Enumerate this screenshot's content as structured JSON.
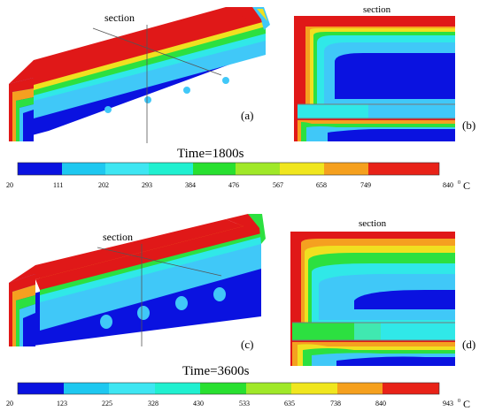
{
  "figure_top": {
    "section_label_3d": "section",
    "section_label_2d": "section",
    "panel_a_label": "(a)",
    "panel_b_label": "(b)",
    "time_label": "Time=1800s",
    "scale": {
      "ticks": [
        "20",
        "111",
        "202",
        "293",
        "384",
        "476",
        "567",
        "658",
        "749",
        "840"
      ],
      "unit_superscript": "0",
      "unit": "C",
      "colors": [
        "#0a12e0",
        "#1ec8f0",
        "#3ee6f2",
        "#20f0d0",
        "#28e030",
        "#a0e828",
        "#f0e61e",
        "#f5a01e",
        "#e82218"
      ]
    }
  },
  "figure_bottom": {
    "section_label_3d": "section",
    "section_label_2d": "section",
    "panel_c_label": "(c)",
    "panel_d_label": "(d)",
    "time_label": "Time=3600s",
    "scale": {
      "ticks": [
        "20",
        "123",
        "225",
        "328",
        "430",
        "533",
        "635",
        "738",
        "840",
        "943"
      ],
      "unit_superscript": "0",
      "unit": "C",
      "colors": [
        "#0a12e0",
        "#1ec8f0",
        "#3ee6f2",
        "#20f0d0",
        "#28e030",
        "#a0e828",
        "#f0e61e",
        "#f5a01e",
        "#e82218"
      ]
    }
  },
  "palette": {
    "blue": "#0a12e0",
    "red": "#e01818",
    "teal": "#30e8e8",
    "cyan": "#40c8f8",
    "green": "#2ce040",
    "yellow": "#f0e020",
    "orange": "#f5a020"
  }
}
